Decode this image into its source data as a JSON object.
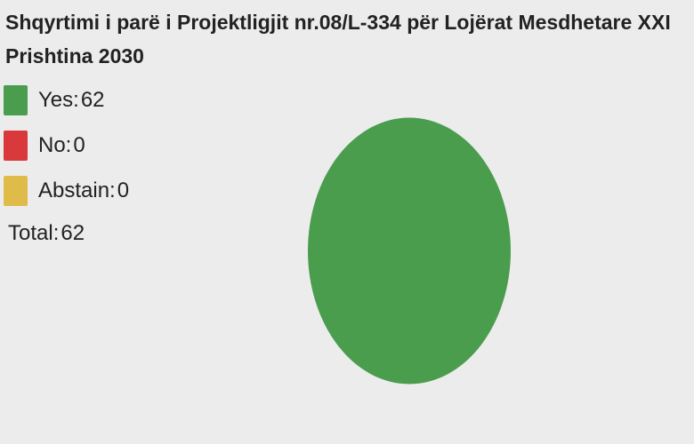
{
  "title_line1": "Shqyrtimi i parë i Projektligjit nr.08/L-334 për Lojërat Mesdhetare XXI",
  "title_line2": "Prishtina 2030",
  "legend": [
    {
      "label": "Yes:",
      "value": "62",
      "color": "#4a9d4d"
    },
    {
      "label": "No:",
      "value": "0",
      "color": "#d9393a"
    },
    {
      "label": "Abstain:",
      "value": "0",
      "color": "#dfbc4a"
    }
  ],
  "total": {
    "label": "Total:",
    "value": "62"
  },
  "chart_data": {
    "type": "pie",
    "title": "Shqyrtimi i parë i Projektligjit nr.08/L-334 për Lojërat Mesdhetare XXI Prishtina 2030",
    "categories": [
      "Yes",
      "No",
      "Abstain"
    ],
    "values": [
      62,
      0,
      0
    ],
    "colors": [
      "#4a9d4d",
      "#d9393a",
      "#dfbc4a"
    ],
    "total": 62,
    "legend_position": "top-left"
  }
}
